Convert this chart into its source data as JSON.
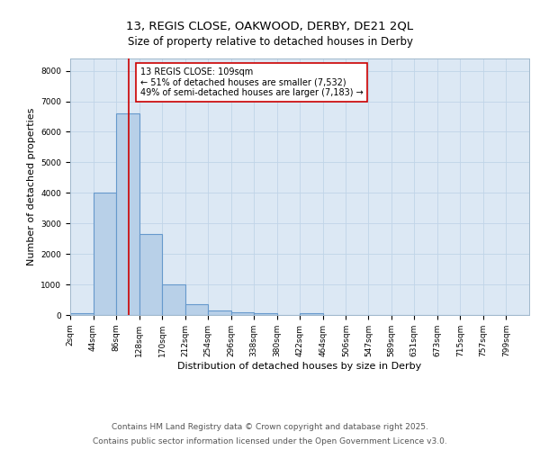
{
  "title1": "13, REGIS CLOSE, OAKWOOD, DERBY, DE21 2QL",
  "title2": "Size of property relative to detached houses in Derby",
  "xlabel": "Distribution of detached houses by size in Derby",
  "ylabel": "Number of detached properties",
  "bar_edges": [
    2,
    44,
    86,
    128,
    170,
    212,
    254,
    296,
    338,
    380,
    422,
    464,
    506,
    547,
    589,
    631,
    673,
    715,
    757,
    799,
    841
  ],
  "bar_heights": [
    50,
    4000,
    6600,
    2650,
    1000,
    350,
    150,
    80,
    50,
    0,
    50,
    0,
    0,
    0,
    0,
    0,
    0,
    0,
    0,
    0
  ],
  "bar_color": "#b8d0e8",
  "bar_edgecolor": "#6699cc",
  "bar_linewidth": 0.8,
  "vline_x": 109,
  "vline_color": "#cc0000",
  "vline_linewidth": 1.2,
  "annotation_text": "13 REGIS CLOSE: 109sqm\n← 51% of detached houses are smaller (7,532)\n49% of semi-detached houses are larger (7,183) →",
  "annotation_box_edgecolor": "#cc0000",
  "annotation_box_facecolor": "white",
  "ylim": [
    0,
    8400
  ],
  "yticks": [
    0,
    1000,
    2000,
    3000,
    4000,
    5000,
    6000,
    7000,
    8000
  ],
  "grid_color": "#c0d4e8",
  "bg_color": "#dce8f4",
  "footer_line1": "Contains HM Land Registry data © Crown copyright and database right 2025.",
  "footer_line2": "Contains public sector information licensed under the Open Government Licence v3.0.",
  "title_fontsize": 9.5,
  "subtitle_fontsize": 8.5,
  "tick_fontsize": 6.5,
  "label_fontsize": 8,
  "annotation_fontsize": 7,
  "footer_fontsize": 6.5
}
